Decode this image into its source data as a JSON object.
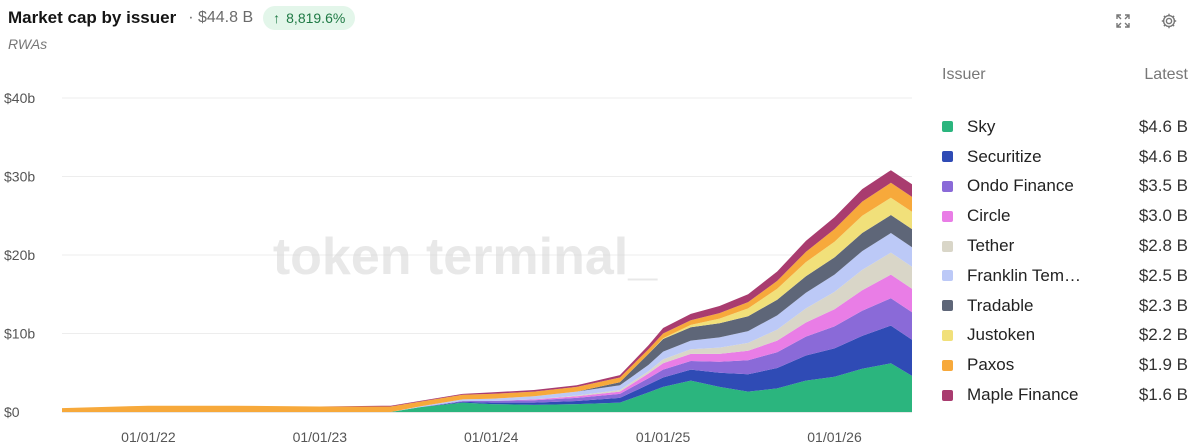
{
  "header": {
    "title": "Market cap by issuer",
    "total": "· $44.8 B",
    "change": "8,819.6%",
    "subtitle": "RWAs"
  },
  "legend": {
    "col_issuer": "Issuer",
    "col_latest": "Latest"
  },
  "watermark": "token terminal_",
  "colors": {
    "Sky": "#2bb57e",
    "Securitize": "#2f4bb5",
    "Ondo Finance": "#8a6ad8",
    "Circle": "#e97de6",
    "Tether": "#d9d6c8",
    "Franklin Templeton": "#bcc9f7",
    "Tradable": "#5e6678",
    "Justoken": "#f1e07a",
    "Paxos": "#f7a93b",
    "Maple Finance": "#a93c6f"
  },
  "chart_data": {
    "type": "area",
    "stacked": true,
    "x": [
      "2021-07-01",
      "2022-01-01",
      "2022-07-01",
      "2023-01-01",
      "2023-06-01",
      "2023-08-01",
      "2023-11-01",
      "2024-01-01",
      "2024-04-01",
      "2024-07-01",
      "2024-10-01",
      "2024-12-01",
      "2025-01-01",
      "2025-03-01",
      "2025-05-01",
      "2025-07-01",
      "2025-09-01",
      "2025-11-01",
      "2026-01-01",
      "2026-03-01",
      "2026-05-01",
      "2026-06-15"
    ],
    "series": [
      {
        "name": "Sky",
        "values": [
          0,
          0,
          0,
          0,
          0,
          0.6,
          1.2,
          1.0,
          0.9,
          1.0,
          1.2,
          2.5,
          3.2,
          4.0,
          3.2,
          2.6,
          3.0,
          4.0,
          4.5,
          5.5,
          6.2,
          4.6
        ]
      },
      {
        "name": "Securitize",
        "values": [
          0,
          0,
          0,
          0,
          0,
          0,
          0.1,
          0.2,
          0.3,
          0.4,
          0.6,
          1.0,
          1.2,
          1.4,
          1.8,
          2.2,
          2.6,
          3.2,
          3.6,
          4.2,
          4.8,
          4.6
        ]
      },
      {
        "name": "Ondo Finance",
        "values": [
          0,
          0,
          0,
          0,
          0,
          0,
          0.1,
          0.2,
          0.3,
          0.4,
          0.5,
          0.8,
          1.0,
          1.1,
          1.4,
          1.8,
          2.0,
          2.4,
          2.8,
          3.2,
          3.5,
          3.5
        ]
      },
      {
        "name": "Circle",
        "values": [
          0,
          0,
          0,
          0,
          0,
          0,
          0,
          0,
          0.1,
          0.2,
          0.3,
          0.6,
          0.8,
          0.9,
          1.0,
          1.2,
          1.5,
          1.8,
          2.2,
          2.6,
          3.0,
          3.0
        ]
      },
      {
        "name": "Tether",
        "values": [
          0,
          0,
          0,
          0,
          0,
          0,
          0,
          0,
          0,
          0.1,
          0.2,
          0.3,
          0.5,
          0.6,
          0.8,
          1.0,
          1.4,
          1.8,
          2.2,
          2.6,
          2.8,
          2.8
        ]
      },
      {
        "name": "Franklin Templeton",
        "values": [
          0,
          0,
          0,
          0,
          0,
          0.1,
          0.2,
          0.3,
          0.4,
          0.5,
          0.6,
          0.8,
          1.0,
          1.1,
          1.3,
          1.5,
          1.8,
          2.0,
          2.2,
          2.4,
          2.5,
          2.5
        ]
      },
      {
        "name": "Tradable",
        "values": [
          0,
          0,
          0,
          0,
          0,
          0,
          0,
          0,
          0,
          0,
          0.4,
          1.4,
          1.6,
          1.7,
          1.8,
          1.9,
          2.0,
          2.1,
          2.2,
          2.3,
          2.3,
          2.3
        ]
      },
      {
        "name": "Justoken",
        "values": [
          0,
          0,
          0,
          0,
          0,
          0,
          0,
          0,
          0,
          0,
          0,
          0,
          0.1,
          0.3,
          0.6,
          1.0,
          1.4,
          1.8,
          2.0,
          2.2,
          2.2,
          2.2
        ]
      },
      {
        "name": "Paxos",
        "values": [
          0.5,
          0.8,
          0.8,
          0.7,
          0.7,
          0.6,
          0.6,
          0.6,
          0.6,
          0.6,
          0.6,
          0.6,
          0.6,
          0.6,
          0.7,
          0.8,
          1.0,
          1.3,
          1.6,
          1.8,
          1.9,
          1.9
        ]
      },
      {
        "name": "Maple Finance",
        "values": [
          0,
          0,
          0,
          0,
          0.1,
          0.1,
          0.1,
          0.2,
          0.2,
          0.2,
          0.3,
          0.5,
          0.7,
          0.8,
          0.9,
          1.0,
          1.2,
          1.4,
          1.5,
          1.6,
          1.6,
          1.6
        ]
      }
    ],
    "legend_entries": [
      {
        "name": "Sky",
        "latest": "$4.6 B"
      },
      {
        "name": "Securitize",
        "latest": "$4.6 B"
      },
      {
        "name": "Ondo Finance",
        "latest": "$3.5 B"
      },
      {
        "name": "Circle",
        "latest": "$3.0 B"
      },
      {
        "name": "Tether",
        "latest": "$2.8 B"
      },
      {
        "name": "Franklin Tem…",
        "latest": "$2.5 B"
      },
      {
        "name": "Tradable",
        "latest": "$2.3 B"
      },
      {
        "name": "Justoken",
        "latest": "$2.2 B"
      },
      {
        "name": "Paxos",
        "latest": "$1.9 B"
      },
      {
        "name": "Maple Finance",
        "latest": "$1.6 B"
      }
    ],
    "x_ticks": [
      {
        "date": "2022-01-01",
        "label": "01/01/22"
      },
      {
        "date": "2023-01-01",
        "label": "01/01/23"
      },
      {
        "date": "2024-01-01",
        "label": "01/01/24"
      },
      {
        "date": "2025-01-01",
        "label": "01/01/25"
      },
      {
        "date": "2026-01-01",
        "label": "01/01/26"
      }
    ],
    "y_ticks": [
      {
        "v": 0,
        "label": "$0"
      },
      {
        "v": 10,
        "label": "$10b"
      },
      {
        "v": 20,
        "label": "$20b"
      },
      {
        "v": 30,
        "label": "$30b"
      },
      {
        "v": 40,
        "label": "$40b"
      }
    ],
    "xlim": [
      "2021-07-01",
      "2026-06-15"
    ],
    "ylim": [
      0,
      40
    ],
    "grid": true,
    "legend_position": "right"
  }
}
